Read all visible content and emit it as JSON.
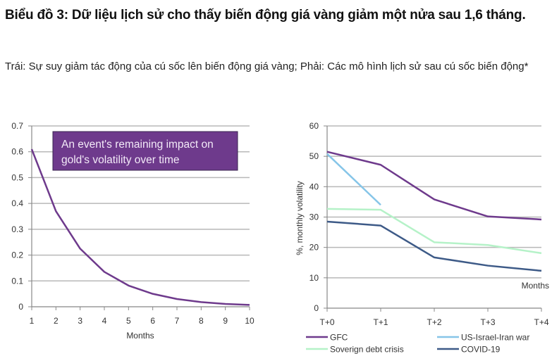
{
  "header": {
    "title": "Biểu đồ 3: Dữ liệu lịch sử cho thấy biến động giá vàng giảm một nửa sau 1,6 tháng.",
    "subtitle": "Trái: Sự suy giảm tác động của cú sốc lên biến động giá vàng; Phải: Các mô hình lịch sử sau cú sốc biến động*"
  },
  "chart_data": [
    {
      "type": "line",
      "annotation": "An event's remaining impact on gold's volatility over time",
      "annotation_lines": [
        "An event's remaining impact on",
        "gold's volatility over time"
      ],
      "annotation_color": "#6e3a8c",
      "xlabel": "Months",
      "ylabel": "",
      "x": [
        1,
        2,
        3,
        4,
        5,
        6,
        7,
        8,
        9,
        10
      ],
      "xticks": [
        "1",
        "2",
        "3",
        "4",
        "5",
        "6",
        "7",
        "8",
        "9",
        "10"
      ],
      "ylim": [
        0,
        0.7
      ],
      "yticks": [
        "0",
        "0.1",
        "0.2",
        "0.3",
        "0.4",
        "0.5",
        "0.6",
        "0.7"
      ],
      "grid": true,
      "series": [
        {
          "color": "#6e3a8c",
          "values": [
            0.61,
            0.37,
            0.225,
            0.135,
            0.082,
            0.05,
            0.03,
            0.018,
            0.011,
            0.007
          ]
        }
      ]
    },
    {
      "type": "line",
      "xlabel": "Months",
      "ylabel": "%, monthly volatility",
      "categories": [
        "T+0",
        "T+1",
        "T+2",
        "T+3",
        "T+4"
      ],
      "ylim": [
        0,
        60
      ],
      "yticks": [
        "0",
        "10",
        "20",
        "30",
        "40",
        "50",
        "60"
      ],
      "grid": true,
      "legend": "bottom",
      "series": [
        {
          "name": "GFC",
          "color": "#6e3a8c",
          "values": [
            51.5,
            47.2,
            35.8,
            30.2,
            29.2
          ]
        },
        {
          "name": "US-Israel-Iran war",
          "color": "#86c5e8",
          "values": [
            50.8,
            34.0,
            null,
            null,
            null
          ]
        },
        {
          "name": "Soverign debt crisis",
          "color": "#b5f2c8",
          "values": [
            32.7,
            32.4,
            21.7,
            20.8,
            18.1
          ]
        },
        {
          "name": "COVID-19",
          "color": "#3d5a87",
          "values": [
            28.5,
            27.2,
            16.7,
            14.0,
            12.3
          ]
        }
      ]
    }
  ]
}
